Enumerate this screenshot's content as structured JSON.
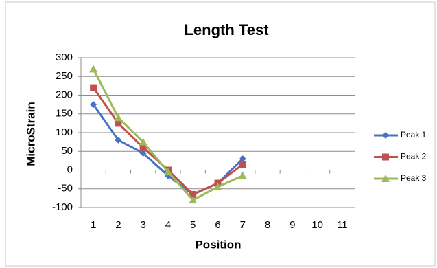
{
  "chart_data": {
    "type": "line",
    "title": "Length Test",
    "x_label": "Position",
    "y_label": "MicroStrain",
    "categories": [
      "1",
      "2",
      "3",
      "4",
      "5",
      "6",
      "7",
      "8",
      "9",
      "10",
      "11"
    ],
    "series": [
      {
        "name": "Peak 1",
        "color": "#4472c4",
        "marker": "diamond",
        "values": [
          175,
          80,
          45,
          -15,
          -65,
          -35,
          30,
          null,
          null,
          null,
          null
        ]
      },
      {
        "name": "Peak 2",
        "color": "#c0504d",
        "marker": "square",
        "values": [
          220,
          125,
          60,
          0,
          -65,
          -35,
          15,
          null,
          null,
          null,
          null
        ]
      },
      {
        "name": "Peak 3",
        "color": "#9bbb59",
        "marker": "triangle",
        "values": [
          270,
          140,
          75,
          -5,
          -80,
          -45,
          -15,
          null,
          null,
          null,
          null
        ]
      }
    ],
    "ylim": [
      -100,
      300
    ],
    "yticks": [
      -100,
      -50,
      0,
      50,
      100,
      150,
      200,
      250,
      300
    ],
    "grid": true,
    "legend": "right"
  }
}
